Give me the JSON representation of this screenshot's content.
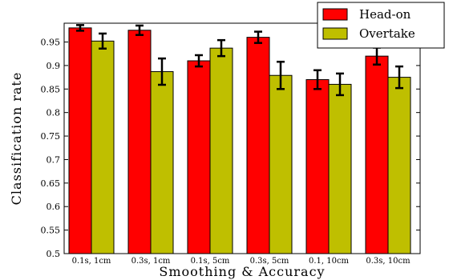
{
  "chart_data": {
    "type": "bar",
    "xlabel": "Smoothing & Accuracy",
    "ylabel": "Classification rate",
    "ylim": [
      0.5,
      0.99
    ],
    "yticks": [
      0.5,
      0.55,
      0.6,
      0.65,
      0.7,
      0.75,
      0.8,
      0.85,
      0.9,
      0.95
    ],
    "categories": [
      "0.1s, 1cm",
      "0.3s, 1cm",
      "0.1s, 5cm",
      "0.3s, 5cm",
      "0.1, 10cm",
      "0.3s, 10cm"
    ],
    "series": [
      {
        "name": "Head-on",
        "color": "#ff0000",
        "values": [
          0.98,
          0.975,
          0.91,
          0.96,
          0.87,
          0.92
        ],
        "errors": [
          0.006,
          0.01,
          0.012,
          0.012,
          0.02,
          0.018
        ]
      },
      {
        "name": "Overtake",
        "color": "#bfbf00",
        "values": [
          0.952,
          0.887,
          0.937,
          0.879,
          0.86,
          0.875
        ],
        "errors": [
          0.016,
          0.028,
          0.017,
          0.029,
          0.023,
          0.023
        ]
      }
    ],
    "legend_position": "top-right",
    "grid": false
  }
}
